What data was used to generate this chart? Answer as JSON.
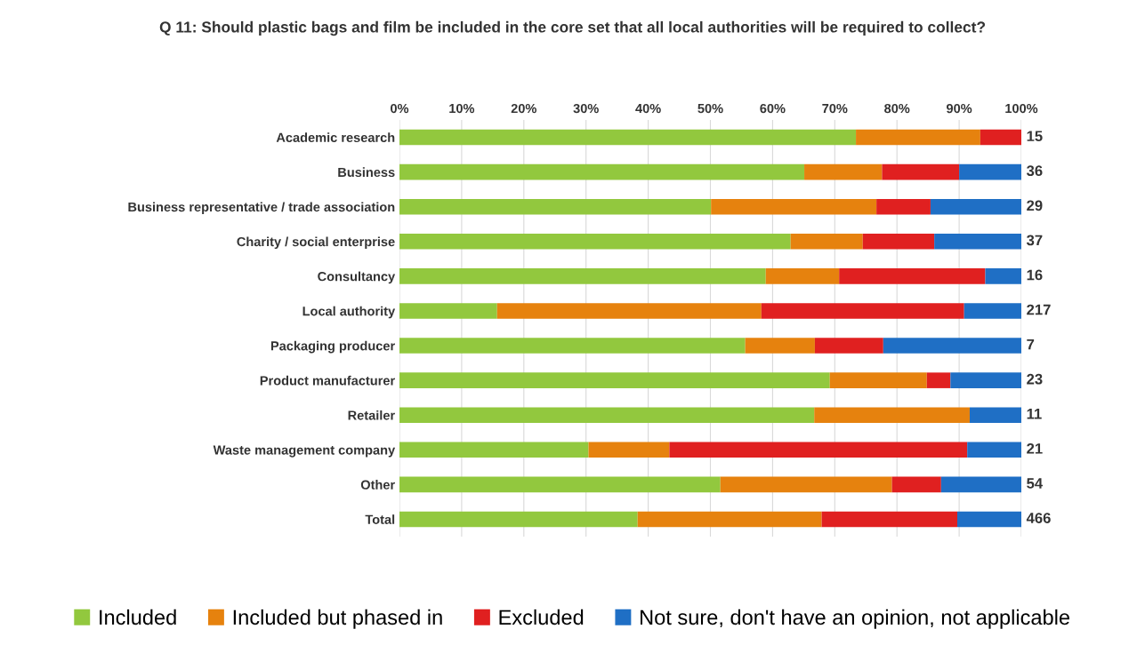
{
  "chart_data": {
    "type": "bar",
    "orientation": "horizontal",
    "stacked": true,
    "title": "Q 11: Should plastic bags and film be included in the core set that all local authorities will be required to collect?",
    "categories": [
      "Academic research",
      "Business",
      "Business representative / trade association",
      "Charity / social enterprise",
      "Consultancy",
      "Local authority",
      "Packaging producer",
      "Product manufacturer",
      "Retailer",
      "Waste management company",
      "Other",
      "Total"
    ],
    "series": [
      {
        "name": "Included",
        "color": "#92c83e",
        "values": [
          73.4,
          65.1,
          50.1,
          62.9,
          58.9,
          15.7,
          55.6,
          69.2,
          66.7,
          30.4,
          51.6,
          38.3
        ]
      },
      {
        "name": "Included but phased in",
        "color": "#e6820e",
        "values": [
          20.0,
          12.5,
          26.6,
          11.6,
          11.8,
          42.5,
          11.2,
          15.6,
          25.0,
          13.0,
          27.6,
          29.6
        ]
      },
      {
        "name": "Excluded",
        "color": "#e02020",
        "values": [
          6.6,
          12.4,
          8.7,
          11.5,
          23.5,
          32.6,
          11.0,
          3.8,
          0,
          47.9,
          7.9,
          21.8
        ]
      },
      {
        "name": "Not sure, don't have an opinion, not applicable",
        "color": "#1f6fc5",
        "values": [
          0,
          10.0,
          14.6,
          14.0,
          5.8,
          9.2,
          22.2,
          11.4,
          8.3,
          8.7,
          12.9,
          10.3
        ]
      }
    ],
    "annotations": [
      "15",
      "36",
      "29",
      "37",
      "16",
      "217",
      "7",
      "23",
      "11",
      "21",
      "54",
      "466"
    ],
    "xlim": [
      0,
      100
    ],
    "xticks": [
      {
        "value": 0,
        "label": "0%"
      },
      {
        "value": 10,
        "label": "10%"
      },
      {
        "value": 20,
        "label": "20%"
      },
      {
        "value": 30,
        "label": "30%"
      },
      {
        "value": 40,
        "label": "40%"
      },
      {
        "value": 50,
        "label": "50%"
      },
      {
        "value": 60,
        "label": "60%"
      },
      {
        "value": 70,
        "label": "70%"
      },
      {
        "value": 80,
        "label": "80%"
      },
      {
        "value": 90,
        "label": "90%"
      },
      {
        "value": 100,
        "label": "100%"
      }
    ],
    "grid": "x",
    "legend": "bottom"
  }
}
